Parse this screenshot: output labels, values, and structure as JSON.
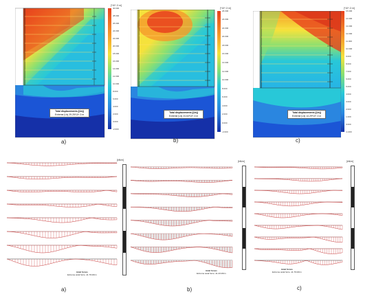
{
  "figure": {
    "top_panels": [
      {
        "caption": "a)",
        "unit_label": "[*10^-3 m]",
        "legend_ticks": [
          "30.000",
          "28.000",
          "26.000",
          "24.000",
          "22.000",
          "20.000",
          "18.000",
          "16.000",
          "14.000",
          "12.000",
          "10.000",
          "8.000",
          "6.000",
          "4.000",
          "2.000",
          "0.000",
          "-2.000"
        ],
        "info_title": "Total displacements (|Ux|)",
        "info_value": "Extreme |Ux| 29.25*10^-3 m"
      },
      {
        "caption": "b)",
        "unit_label": "[*10^-3 m]",
        "legend_ticks": [
          "26.000",
          "24.000",
          "22.000",
          "20.000",
          "18.000",
          "16.000",
          "14.000",
          "12.000",
          "10.000",
          "8.000",
          "6.000",
          "4.000",
          "2.000",
          "0.000",
          "-2.000"
        ],
        "info_title": "Total displacements (|Ux|)",
        "info_value": "Extreme |Ux| 24.64*10^-3 m"
      },
      {
        "caption": "c)",
        "unit_label": "[*10^-3 m]",
        "legend_ticks": [
          "15.000",
          "14.000",
          "13.000",
          "12.000",
          "11.000",
          "10.000",
          "9.000",
          "8.000",
          "7.000",
          "6.000",
          "5.000",
          "4.000",
          "3.000",
          "2.000",
          "1.000",
          "0.000",
          "-1.000"
        ],
        "info_title": "Total displacements (|Ux|)",
        "info_value": "Extreme |Ux| 14.29*10^-3 m"
      }
    ],
    "bottom_panels": [
      {
        "caption": "a)",
        "unit_label": "[kN/m]",
        "info_title": "Axial forces",
        "info_value": "Extreme axial force -11.79 kN/m"
      },
      {
        "caption": "b)",
        "unit_label": "[kN/m]",
        "info_title": "Axial forces",
        "info_value": "Extreme axial force -11.23 kN/m"
      },
      {
        "caption": "c)",
        "unit_label": "[kN/m]",
        "info_title": "Axial forces",
        "info_value": "Extreme axial force -11.79 kN/m"
      }
    ],
    "colors": {
      "deep_blue": "#1b55d6",
      "cyan": "#28c8d8",
      "green": "#8ce070",
      "yellow": "#f5e23c",
      "orange": "#f59a2a",
      "red": "#e8411d",
      "force_red": "#c83a3a"
    }
  }
}
